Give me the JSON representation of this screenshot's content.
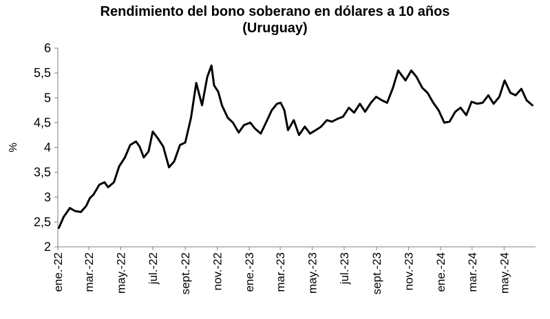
{
  "chart_data": {
    "type": "line",
    "title": "Rendimiento del bono soberano en dólares a 10 años",
    "subtitle": "(Uruguay)",
    "ylabel": "%",
    "xlabel": "",
    "ylim": [
      2,
      6
    ],
    "yticks": [
      "2",
      "2,5",
      "3",
      "3,5",
      "4",
      "4,5",
      "5",
      "5,5",
      "6"
    ],
    "ytick_values": [
      2,
      2.5,
      3,
      3.5,
      4,
      4.5,
      5,
      5.5,
      6
    ],
    "xtick_labels": [
      "ene.-22",
      "mar.-22",
      "may.-22",
      "jul.-22",
      "sept.-22",
      "nov.-22",
      "ene.-23",
      "mar.-23",
      "may.-23",
      "jul.-23",
      "sept.-23",
      "nov.-23",
      "ene.-24",
      "mar.-24",
      "may.-24"
    ],
    "xlim": [
      "2022-01-01",
      "2024-06-30"
    ],
    "grid": false,
    "line_color": "#000000",
    "series": [
      {
        "x": [
          "2022-01-03",
          "2022-01-12",
          "2022-01-24",
          "2022-02-03",
          "2022-02-14",
          "2022-02-24",
          "2022-03-03",
          "2022-03-10",
          "2022-03-21",
          "2022-03-31",
          "2022-04-07",
          "2022-04-18",
          "2022-04-28",
          "2022-05-09",
          "2022-05-19",
          "2022-05-30",
          "2022-06-06",
          "2022-06-14",
          "2022-06-23",
          "2022-07-01",
          "2022-07-11",
          "2022-07-21",
          "2022-08-01",
          "2022-08-11",
          "2022-08-22",
          "2022-09-01",
          "2022-09-12",
          "2022-09-22",
          "2022-10-03",
          "2022-10-13",
          "2022-10-21",
          "2022-10-26",
          "2022-11-03",
          "2022-11-10",
          "2022-11-21",
          "2022-12-01",
          "2022-12-12",
          "2022-12-22",
          "2023-01-03",
          "2023-01-12",
          "2023-01-23",
          "2023-02-02",
          "2023-02-13",
          "2023-02-23",
          "2023-03-02",
          "2023-03-09",
          "2023-03-16",
          "2023-03-27",
          "2023-04-06",
          "2023-04-17",
          "2023-04-27",
          "2023-05-08",
          "2023-05-18",
          "2023-05-29",
          "2023-06-08",
          "2023-06-19",
          "2023-06-29",
          "2023-07-10",
          "2023-07-20",
          "2023-07-31",
          "2023-08-10",
          "2023-08-21",
          "2023-08-31",
          "2023-09-11",
          "2023-09-21",
          "2023-10-02",
          "2023-10-12",
          "2023-10-19",
          "2023-10-26",
          "2023-11-06",
          "2023-11-16",
          "2023-11-27",
          "2023-12-07",
          "2023-12-18",
          "2023-12-28",
          "2024-01-08",
          "2024-01-18",
          "2024-01-29",
          "2024-02-08",
          "2024-02-19",
          "2024-02-29",
          "2024-03-11",
          "2024-03-21",
          "2024-04-01",
          "2024-04-11",
          "2024-04-22",
          "2024-05-02",
          "2024-05-13",
          "2024-05-23",
          "2024-06-03",
          "2024-06-13",
          "2024-06-24"
        ],
        "values": [
          2.38,
          2.6,
          2.78,
          2.72,
          2.7,
          2.82,
          2.98,
          3.05,
          3.25,
          3.3,
          3.2,
          3.3,
          3.62,
          3.8,
          4.05,
          4.12,
          4.02,
          3.8,
          3.92,
          4.32,
          4.18,
          4.02,
          3.6,
          3.72,
          4.05,
          4.1,
          4.6,
          5.3,
          4.85,
          5.42,
          5.65,
          5.25,
          5.12,
          4.85,
          4.6,
          4.5,
          4.3,
          4.45,
          4.5,
          4.38,
          4.28,
          4.5,
          4.75,
          4.88,
          4.9,
          4.75,
          4.35,
          4.55,
          4.25,
          4.42,
          4.28,
          4.35,
          4.42,
          4.55,
          4.52,
          4.58,
          4.62,
          4.8,
          4.7,
          4.88,
          4.72,
          4.9,
          5.02,
          4.95,
          4.9,
          5.2,
          5.55,
          5.45,
          5.35,
          5.55,
          5.42,
          5.2,
          5.1,
          4.9,
          4.75,
          4.5,
          4.52,
          4.72,
          4.8,
          4.65,
          4.92,
          4.88,
          4.9,
          5.05,
          4.88,
          5.02,
          5.35,
          5.1,
          5.05,
          5.18,
          4.95,
          4.85
        ]
      }
    ]
  }
}
